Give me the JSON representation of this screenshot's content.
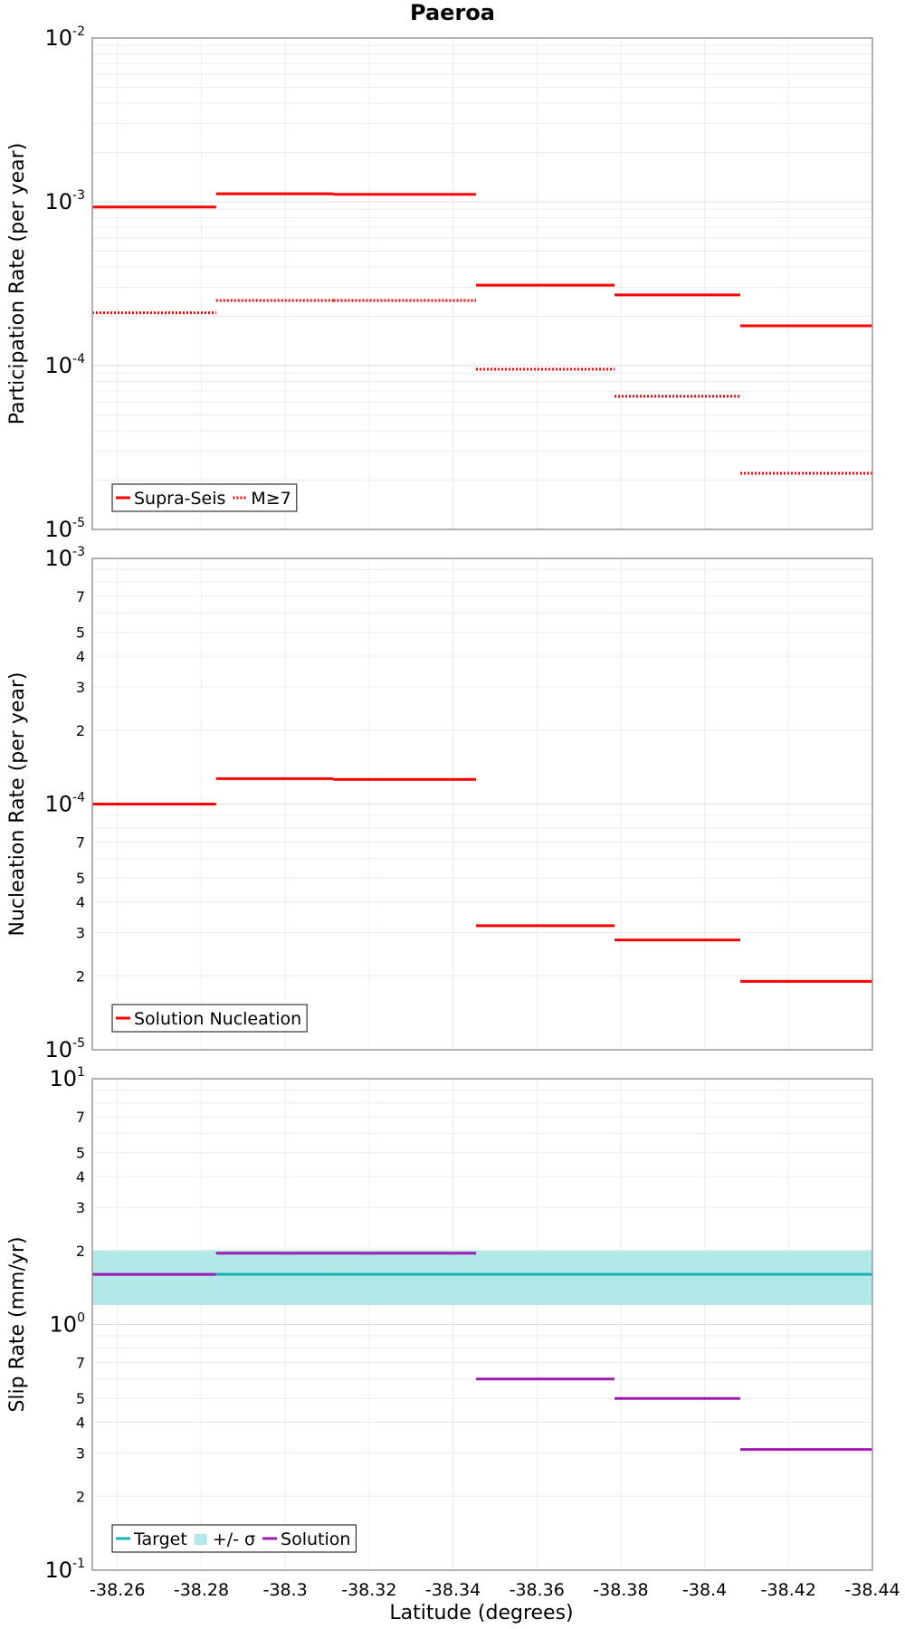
{
  "chart_data": {
    "title": "Paeroa",
    "xlabel": "Latitude (degrees)",
    "xlim": [
      -38.254,
      -38.44
    ],
    "xticks": [
      -38.26,
      -38.28,
      -38.3,
      -38.32,
      -38.34,
      -38.36,
      -38.38,
      -38.4,
      -38.42,
      -38.44
    ],
    "xtick_labels": [
      "-38.26",
      "-38.28",
      "-38.3",
      "-38.32",
      "-38.34",
      "-38.36",
      "-38.38",
      "-38.4",
      "-38.42",
      "-38.44"
    ],
    "segment_edges": [
      -38.254,
      -38.2835,
      -38.3115,
      -38.3455,
      -38.3785,
      -38.4085,
      -38.44
    ],
    "panels": [
      {
        "type": "line",
        "ylabel": "Participation Rate (per year)",
        "yscale": "log",
        "ylim": [
          1e-05,
          0.01
        ],
        "ytick_labels": [
          {
            "value": 1e-05,
            "base": "10",
            "exp": "-5"
          },
          {
            "value": 0.0001,
            "base": "10",
            "exp": "-4"
          },
          {
            "value": 0.001,
            "base": "10",
            "exp": "-3"
          },
          {
            "value": 0.01,
            "base": "10",
            "exp": "-2"
          }
        ],
        "minor_labels": [],
        "band": null,
        "legend": {
          "position": "bottom-left",
          "entries": [
            {
              "label": "Supra-Seis",
              "style": "solid",
              "color": "#ff0000"
            },
            {
              "label": "M≥7",
              "style": "dotted",
              "color": "#ff0000"
            }
          ]
        },
        "series": [
          {
            "name": "Supra-Seis",
            "color": "#ff0000",
            "style": "solid",
            "values": [
              0.00093,
              0.00112,
              0.00111,
              0.00031,
              0.00027,
              0.000175
            ]
          },
          {
            "name": "M≥7",
            "color": "#ff0000",
            "style": "dotted",
            "values": [
              0.00021,
              0.00025,
              0.00025,
              9.5e-05,
              6.5e-05,
              2.2e-05
            ]
          }
        ]
      },
      {
        "type": "line",
        "ylabel": "Nucleation Rate (per year)",
        "yscale": "log",
        "ylim": [
          1e-05,
          0.001
        ],
        "ytick_labels": [
          {
            "value": 1e-05,
            "base": "10",
            "exp": "-5"
          },
          {
            "value": 0.0001,
            "base": "10",
            "exp": "-4"
          },
          {
            "value": 0.001,
            "base": "10",
            "exp": "-3"
          }
        ],
        "minor_labels": [
          {
            "value": 2e-05,
            "label": "2"
          },
          {
            "value": 3e-05,
            "label": "3"
          },
          {
            "value": 4e-05,
            "label": "4"
          },
          {
            "value": 5e-05,
            "label": "5"
          },
          {
            "value": 7e-05,
            "label": "7"
          },
          {
            "value": 0.0002,
            "label": "2"
          },
          {
            "value": 0.0003,
            "label": "3"
          },
          {
            "value": 0.0004,
            "label": "4"
          },
          {
            "value": 0.0005,
            "label": "5"
          },
          {
            "value": 0.0007,
            "label": "7"
          }
        ],
        "band": null,
        "legend": {
          "position": "bottom-left",
          "entries": [
            {
              "label": "Solution Nucleation",
              "style": "solid",
              "color": "#ff0000"
            }
          ]
        },
        "series": [
          {
            "name": "Solution Nucleation",
            "color": "#ff0000",
            "style": "solid",
            "values": [
              0.0001,
              0.000127,
              0.000126,
              3.2e-05,
              2.8e-05,
              1.9e-05
            ]
          }
        ]
      },
      {
        "type": "line",
        "ylabel": "Slip Rate (mm/yr)",
        "yscale": "log",
        "ylim": [
          0.1,
          10
        ],
        "ytick_labels": [
          {
            "value": 0.1,
            "base": "10",
            "exp": "-1"
          },
          {
            "value": 1,
            "base": "10",
            "exp": "0"
          },
          {
            "value": 10,
            "base": "10",
            "exp": "1"
          }
        ],
        "minor_labels": [
          {
            "value": 0.2,
            "label": "2"
          },
          {
            "value": 0.3,
            "label": "3"
          },
          {
            "value": 0.4,
            "label": "4"
          },
          {
            "value": 0.5,
            "label": "5"
          },
          {
            "value": 0.7,
            "label": "7"
          },
          {
            "value": 2,
            "label": "2"
          },
          {
            "value": 3,
            "label": "3"
          },
          {
            "value": 4,
            "label": "4"
          },
          {
            "value": 5,
            "label": "5"
          },
          {
            "value": 7,
            "label": "7"
          }
        ],
        "band": {
          "lower": 1.2,
          "upper": 2.0,
          "color": "#b2e8e8"
        },
        "legend": {
          "position": "bottom-left",
          "entries": [
            {
              "label": "Target",
              "style": "solid",
              "color": "#1ab3b3"
            },
            {
              "label": "+/- σ",
              "style": "band",
              "color": "#b2e8e8"
            },
            {
              "label": "Solution",
              "style": "solid",
              "color": "#a01ab3"
            }
          ]
        },
        "series": [
          {
            "name": "Target",
            "color": "#1ab3b3",
            "style": "solid",
            "values": [
              1.6,
              1.6,
              1.6,
              1.6,
              1.6,
              1.6
            ]
          },
          {
            "name": "Solution",
            "color": "#a01ab3",
            "style": "solid",
            "values": [
              1.6,
              1.95,
              1.95,
              0.6,
              0.5,
              0.31
            ]
          }
        ]
      }
    ]
  }
}
